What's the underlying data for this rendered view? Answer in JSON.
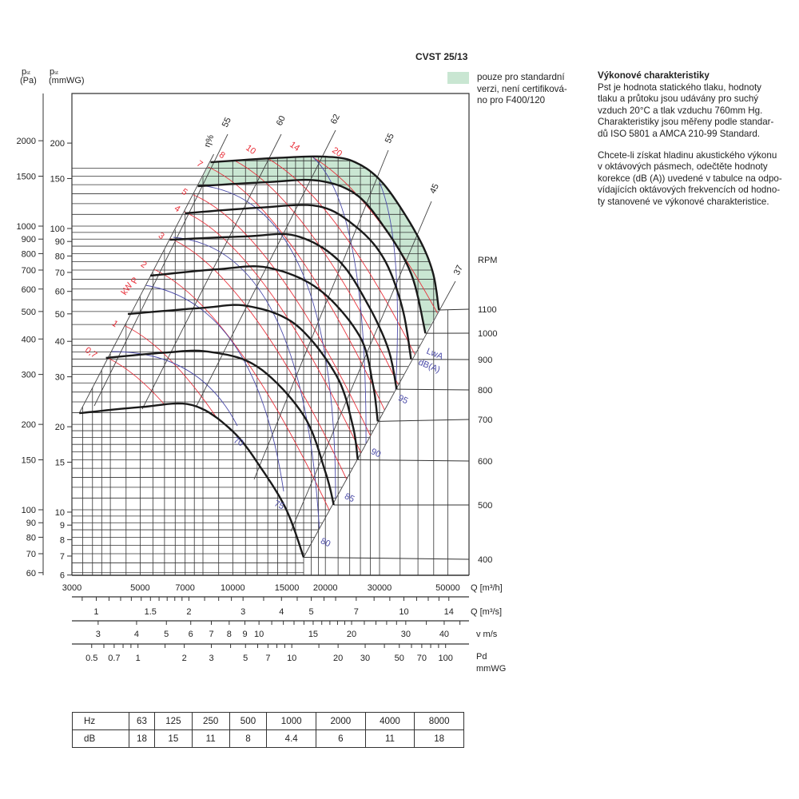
{
  "title": "CVST 25/13",
  "legend": {
    "swatch_color": "#c9e6d2",
    "text_lines": [
      "pouze pro standardní",
      "verzi, není certifiková-",
      "no pro F400/120"
    ]
  },
  "description": {
    "heading": "Výkonové charakteristiky",
    "para1_lines": [
      "Pst je hodnota statického tlaku, hodnoty",
      "tlaku a průtoku jsou udávány pro suchý",
      "vzduch 20°C a tlak vzduchu 760mm Hg.",
      "Charakteristiky jsou měřeny podle standar-",
      "dů ISO 5801 a AMCA 210-99 Standard."
    ],
    "para2_lines": [
      "Chcete-li získat hladinu akustického výkonu",
      "v oktávových pásmech, odečtěte hodnoty",
      "korekce (dB (A)) uvedené v tabulce na odpo-",
      "vídajících oktávových frekvencích od hodno-",
      "ty stanovené ve výkonové charakteristice."
    ]
  },
  "chart_data": {
    "type": "line",
    "title": "",
    "grid": true,
    "colors": {
      "fan_curve": "#1a1a1a",
      "power_lines": "#e8303a",
      "sound_lines": "#4a4aa8",
      "efficiency_lines": "#555555",
      "shaded": "#c9e6d2"
    },
    "x_axis": {
      "label": "Q [m³/h]",
      "scale": "log",
      "range": [
        3000,
        60000
      ],
      "tick_labels": [
        "3000",
        "5000",
        "7000",
        "10000",
        "15000",
        "20000",
        "30000",
        "50000"
      ],
      "tick_values": [
        3000,
        5000,
        7000,
        10000,
        15000,
        20000,
        30000,
        50000
      ]
    },
    "y_axis_pa": {
      "label_main": "p",
      "label_sub": "st",
      "label_unit": "(Pa)",
      "scale": "log",
      "range": [
        58,
        2300
      ],
      "tick_labels": [
        "2000",
        "1500",
        "1000",
        "900",
        "800",
        "700",
        "600",
        "500",
        "400",
        "300",
        "200",
        "150",
        "100",
        "90",
        "80",
        "70",
        "60"
      ]
    },
    "y_axis_mmwg": {
      "label_main": "p",
      "label_sub": "st",
      "label_unit": "(mmWG)",
      "scale": "log",
      "tick_labels": [
        "200",
        "150",
        "100",
        "90",
        "80",
        "70",
        "60",
        "50",
        "40",
        "30",
        "20",
        "15",
        "10",
        "9",
        "8",
        "7",
        "6"
      ]
    },
    "secondary_axes": [
      {
        "label": "Q [m³/s]",
        "tick_labels": [
          "1",
          "1.5",
          "2",
          "3",
          "4",
          "5",
          "7",
          "10",
          "14"
        ]
      },
      {
        "label": "v m/s",
        "tick_labels": [
          "3",
          "4",
          "5",
          "6",
          "7",
          "8",
          "9",
          "10",
          "15",
          "20",
          "30",
          "40"
        ]
      },
      {
        "label": "Pd",
        "label2": "mmWG",
        "tick_labels": [
          "0.5",
          "0.7",
          "1",
          "2",
          "3",
          "5",
          "7",
          "10",
          "20",
          "30",
          "50",
          "70",
          "100"
        ]
      }
    ],
    "rpm_label": "RPM",
    "series": [
      {
        "name": "400",
        "points": [
          [
            3170,
            219
          ],
          [
            5000,
            230
          ],
          [
            7370,
            234
          ],
          [
            10000,
            189
          ],
          [
            12600,
            136
          ],
          [
            15000,
            99
          ],
          [
            17000,
            68
          ]
        ]
      },
      {
        "name": "500",
        "points": [
          [
            3870,
            343
          ],
          [
            6000,
            358
          ],
          [
            8300,
            361
          ],
          [
            12000,
            320
          ],
          [
            17000,
            215
          ],
          [
            20000,
            136
          ],
          [
            21300,
            104
          ]
        ]
      },
      {
        "name": "600",
        "points": [
          [
            4560,
            490
          ],
          [
            8000,
            515
          ],
          [
            11140,
            523
          ],
          [
            16000,
            450
          ],
          [
            21700,
            298
          ],
          [
            24500,
            200
          ],
          [
            25500,
            150
          ]
        ]
      },
      {
        "name": "700",
        "points": [
          [
            5395,
            669
          ],
          [
            9000,
            705
          ],
          [
            13000,
            714
          ],
          [
            19000,
            600
          ],
          [
            25800,
            411
          ],
          [
            28500,
            280
          ],
          [
            29600,
            205
          ]
        ]
      },
      {
        "name": "800",
        "points": [
          [
            6240,
            895
          ],
          [
            11000,
            920
          ],
          [
            16000,
            925
          ],
          [
            22000,
            760
          ],
          [
            27400,
            533
          ],
          [
            32000,
            370
          ],
          [
            34100,
            266
          ]
        ]
      },
      {
        "name": "900",
        "points": [
          [
            7000,
            1110
          ],
          [
            12000,
            1160
          ],
          [
            18900,
            1176
          ],
          [
            25000,
            1000
          ],
          [
            30900,
            772
          ],
          [
            35500,
            520
          ],
          [
            38000,
            339
          ]
        ]
      },
      {
        "name": "1000",
        "points": [
          [
            7700,
            1383
          ],
          [
            13000,
            1430
          ],
          [
            18900,
            1447
          ],
          [
            25000,
            1300
          ],
          [
            30900,
            1000
          ],
          [
            38000,
            680
          ],
          [
            42300,
            419
          ]
        ]
      },
      {
        "name": "1100",
        "points": [
          [
            8470,
            1680
          ],
          [
            14000,
            1740
          ],
          [
            20000,
            1757
          ],
          [
            25000,
            1680
          ],
          [
            30900,
            1410
          ],
          [
            39200,
            955
          ],
          [
            44500,
            700
          ],
          [
            46800,
            506
          ]
        ]
      }
    ],
    "shaded_region": {
      "between": [
        "1000",
        "1100"
      ],
      "meaning": "pouze pro standardní verzi"
    },
    "efficiency_label": "η%",
    "efficiency_lines": [
      "55",
      "60",
      "62",
      "55",
      "45",
      "37"
    ],
    "power_label": [
      "P",
      "kW"
    ],
    "power_lines": [
      "0,7",
      "1",
      "2",
      "3",
      "4",
      "5",
      "7",
      "8",
      "10",
      "14",
      "20"
    ],
    "sound_label": [
      "LwA",
      "dB(A)"
    ],
    "sound_lines": [
      "70",
      "75",
      "80",
      "85",
      "90",
      "95"
    ]
  },
  "octave_table": {
    "rows": [
      [
        "Hz",
        "63",
        "125",
        "250",
        "500",
        "1000",
        "2000",
        "4000",
        "8000"
      ],
      [
        "dB",
        "18",
        "15",
        "11",
        "8",
        "4.4",
        "6",
        "11",
        "18"
      ]
    ]
  }
}
